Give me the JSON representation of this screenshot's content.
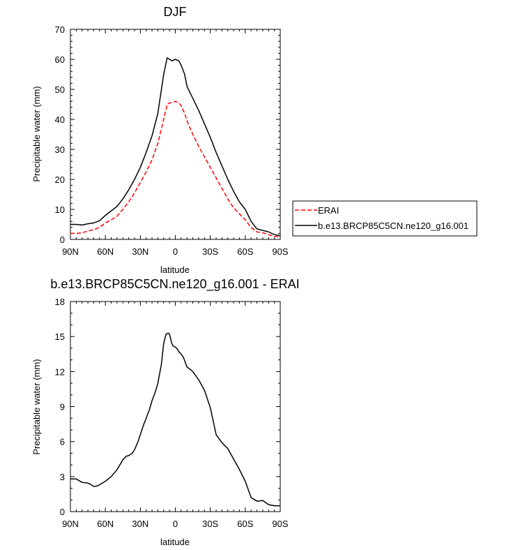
{
  "chart_data": [
    {
      "type": "line",
      "title": "DJF",
      "xlabel": "latitude",
      "ylabel": "Precipitable water (mm)",
      "xlim": [
        -90,
        90
      ],
      "ylim": [
        0,
        70
      ],
      "xticks": [
        "90N",
        "60N",
        "30N",
        "0",
        "30S",
        "60S",
        "90S"
      ],
      "yticks": [
        "0",
        "10",
        "20",
        "30",
        "40",
        "50",
        "60",
        "70"
      ],
      "legend": {
        "placement": "right",
        "entries": [
          "ERAI",
          "b.e13.BRCP85C5CN.ne120_g16.001"
        ]
      },
      "series": [
        {
          "name": "ERAI",
          "color": "#ff0000",
          "dash": "dashed",
          "x": [
            -90,
            -85,
            -80,
            -75,
            -70,
            -65,
            -60,
            -55,
            -50,
            -45,
            -40,
            -35,
            -30,
            -25,
            -20,
            -15,
            -10,
            -7,
            -5,
            -3,
            0,
            3,
            5,
            8,
            10,
            15,
            20,
            25,
            30,
            35,
            40,
            45,
            50,
            55,
            60,
            65,
            70,
            75,
            80,
            85,
            90
          ],
          "y": [
            2.0,
            2.0,
            2.2,
            2.8,
            3.2,
            4.0,
            5.5,
            6.5,
            7.8,
            10.0,
            12.5,
            15.5,
            19.0,
            22.5,
            26.5,
            32.0,
            40.0,
            45.0,
            45.5,
            45.5,
            46.0,
            45.5,
            44.5,
            42.0,
            39.5,
            35.0,
            31.0,
            27.5,
            24.0,
            20.5,
            17.0,
            13.5,
            10.5,
            8.5,
            6.5,
            4.0,
            2.5,
            2.2,
            1.6,
            1.0,
            0.8
          ]
        },
        {
          "name": "b.e13.BRCP85C5CN.ne120_g16.001",
          "color": "#000000",
          "dash": "solid",
          "x": [
            -90,
            -85,
            -80,
            -75,
            -70,
            -65,
            -60,
            -55,
            -50,
            -45,
            -40,
            -35,
            -30,
            -25,
            -20,
            -15,
            -10,
            -7,
            -5,
            -3,
            0,
            3,
            5,
            8,
            10,
            15,
            20,
            25,
            30,
            35,
            40,
            45,
            50,
            55,
            60,
            65,
            70,
            75,
            80,
            85,
            90
          ],
          "y": [
            5.0,
            5.0,
            4.8,
            5.2,
            5.5,
            6.2,
            8.0,
            9.5,
            11.0,
            13.5,
            16.5,
            20.0,
            24.0,
            29.0,
            34.5,
            42.0,
            55.0,
            60.5,
            60.0,
            59.5,
            60.0,
            59.5,
            58.0,
            55.0,
            51.0,
            47.0,
            43.0,
            38.5,
            34.0,
            29.0,
            24.5,
            20.0,
            16.0,
            12.5,
            10.0,
            6.0,
            3.5,
            3.0,
            2.5,
            1.6,
            1.2
          ]
        }
      ]
    },
    {
      "type": "line",
      "title": "b.e13.BRCP85C5CN.ne120_g16.001 - ERAI",
      "xlabel": "latitude",
      "ylabel": "Precipitable water (mm)",
      "xlim": [
        -90,
        90
      ],
      "ylim": [
        0,
        18
      ],
      "xticks": [
        "90N",
        "60N",
        "30N",
        "0",
        "30S",
        "60S",
        "90S"
      ],
      "yticks": [
        "0",
        "3",
        "6",
        "9",
        "12",
        "15",
        "18"
      ],
      "series": [
        {
          "color": "#000000",
          "dash": "solid",
          "x": [
            -90,
            -85,
            -80,
            -75,
            -72,
            -70,
            -67,
            -65,
            -60,
            -55,
            -50,
            -47,
            -45,
            -42,
            -40,
            -37,
            -35,
            -32,
            -30,
            -27,
            -25,
            -22,
            -20,
            -17,
            -15,
            -12,
            -10,
            -8,
            -6,
            -5,
            -4,
            -3,
            -2,
            -1,
            0,
            2,
            3,
            5,
            7,
            10,
            15,
            20,
            25,
            30,
            35,
            40,
            45,
            50,
            55,
            60,
            65,
            70,
            75,
            80,
            85,
            88,
            90
          ],
          "y": [
            2.8,
            2.8,
            2.5,
            2.45,
            2.3,
            2.15,
            2.2,
            2.3,
            2.6,
            3.0,
            3.6,
            4.1,
            4.45,
            4.75,
            4.8,
            5.0,
            5.3,
            6.0,
            6.6,
            7.5,
            8.0,
            8.8,
            9.5,
            10.3,
            11.0,
            12.6,
            14.4,
            15.2,
            15.3,
            15.2,
            14.8,
            14.4,
            14.2,
            14.15,
            14.1,
            13.9,
            13.7,
            13.5,
            13.2,
            12.4,
            12.0,
            11.3,
            10.4,
            8.9,
            6.6,
            5.9,
            5.4,
            4.5,
            3.6,
            2.6,
            1.2,
            0.9,
            0.95,
            0.6,
            0.5,
            0.5,
            0.5
          ]
        }
      ]
    }
  ]
}
